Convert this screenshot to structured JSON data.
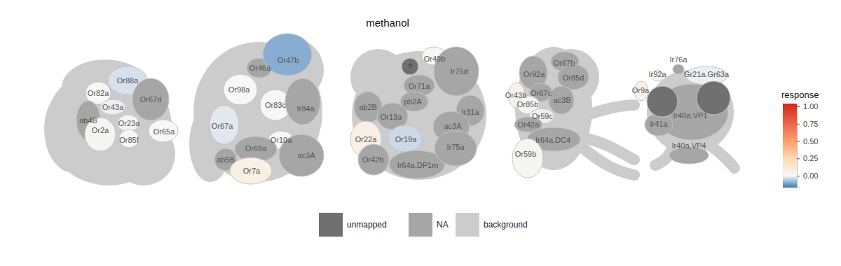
{
  "chart_data": {
    "type": "glomerulus_map",
    "title": "methanol",
    "panels": [
      {
        "cells": [
          {
            "label": "Or88a",
            "value": -0.03
          },
          {
            "label": "Or82a",
            "value": 0.0
          },
          {
            "label": "Or67d",
            "value": null
          },
          {
            "label": "Or43a",
            "value": -0.01
          },
          {
            "label": "ab4B",
            "value": null
          },
          {
            "label": "Or23a",
            "value": 0.02
          },
          {
            "label": "Or2a",
            "value": 0.02
          },
          {
            "label": "Or85f",
            "value": 0.01
          },
          {
            "label": "Or65a",
            "value": 0.0
          }
        ],
        "unmapped": []
      },
      {
        "cells": [
          {
            "label": "Or46a",
            "value": null
          },
          {
            "label": "Or47b",
            "value": -0.1
          },
          {
            "label": "Or98a",
            "value": 0.0
          },
          {
            "label": "Or83c",
            "value": 0.0
          },
          {
            "label": "Ir84a",
            "value": null
          },
          {
            "label": "Or67a",
            "value": -0.02
          },
          {
            "label": "Or10a",
            "value": 0.0
          },
          {
            "label": "Or69a",
            "value": null
          },
          {
            "label": "ac3A",
            "value": null
          },
          {
            "label": "ab5B",
            "value": null
          },
          {
            "label": "Or7a",
            "value": 0.07
          }
        ],
        "unmapped": []
      },
      {
        "cells": [
          {
            "label": "Or49b",
            "value": 0.01
          },
          {
            "label": "Or71a",
            "value": null
          },
          {
            "label": "Ir75d",
            "value": null
          },
          {
            "label": "pb2A",
            "value": null
          },
          {
            "label": "Ir31a",
            "value": null
          },
          {
            "label": "ab2B",
            "value": null
          },
          {
            "label": "Or13a",
            "value": null
          },
          {
            "label": "ac3A",
            "value": null
          },
          {
            "label": "Or19a",
            "value": -0.04
          },
          {
            "label": "Or22a",
            "value": 0.06
          },
          {
            "label": "Or42b",
            "value": null
          },
          {
            "label": "Ir64a.DP1m",
            "value": null
          },
          {
            "label": "Ir75a",
            "value": null
          }
        ],
        "unmapped": [
          {
            "label": "?"
          }
        ]
      },
      {
        "cells": [
          {
            "label": "Or92a",
            "value": null
          },
          {
            "label": "Or67b",
            "value": null
          },
          {
            "label": "Or85d",
            "value": null
          },
          {
            "label": "Or67c",
            "value": null
          },
          {
            "label": "ac3B",
            "value": null
          },
          {
            "label": "Or43b",
            "value": 0.04
          },
          {
            "label": "Or85b",
            "value": 0.02
          },
          {
            "label": "Or59c",
            "value": -0.01
          },
          {
            "label": "Or42a",
            "value": null
          },
          {
            "label": "Ir64a.DC4",
            "value": null
          },
          {
            "label": "Or59b",
            "value": 0.02
          }
        ],
        "unmapped": []
      },
      {
        "cells": [
          {
            "label": "Ir40a.VP1",
            "value": null
          },
          {
            "label": "Ir76a",
            "value": null
          },
          {
            "label": "Ir92a",
            "value": 0.0
          },
          {
            "label": "Gr21a.Gr63a",
            "value": -0.01
          },
          {
            "label": "Or9a",
            "value": 0.05
          },
          {
            "label": "Ir41a",
            "value": null
          },
          {
            "label": "Ir40a.VP4",
            "value": null
          }
        ],
        "unmapped": [
          {
            "label": null
          },
          {
            "label": null
          }
        ]
      }
    ],
    "legend_items": [
      {
        "label": "unmapped",
        "color": "#707070"
      },
      {
        "label": "NA",
        "color": "#a6a6a6"
      },
      {
        "label": "background",
        "color": "#cccccc"
      }
    ],
    "colorbar": {
      "title": "response",
      "range": [
        -0.17,
        1.04
      ],
      "ticks": [
        {
          "value": 0,
          "label": "0.00"
        },
        {
          "value": 0.25,
          "label": "0.25"
        },
        {
          "value": 0.5,
          "label": "0.50"
        },
        {
          "value": 0.75,
          "label": "0.75"
        },
        {
          "value": 1,
          "label": "1.00"
        }
      ],
      "colors": [
        "#3a78b8",
        "#f7f7f7",
        "#fdd9b0",
        "#fc9f6b",
        "#ef6548",
        "#d7301f"
      ]
    }
  }
}
